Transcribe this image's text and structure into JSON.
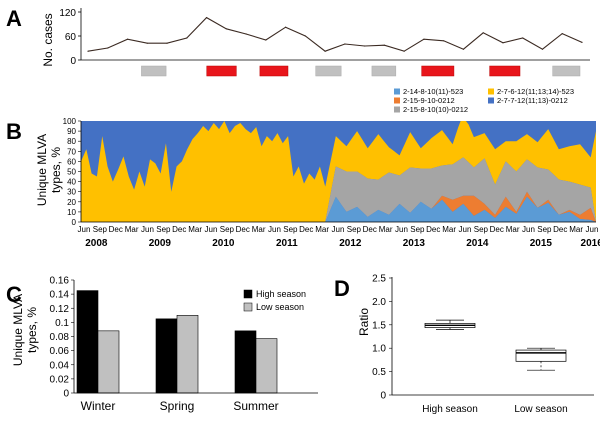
{
  "panels": {
    "a": "A",
    "b": "B",
    "c": "C",
    "d": "D"
  },
  "colors": {
    "line": "#3b2a22",
    "high_season": "#e8151b",
    "low_season": "#c0c0c0",
    "s_2_7_7": "#4471c4",
    "s_2_7_6": "#ffc000",
    "s_2_15_8": "#a5a5a5",
    "s_2_15_9": "#ed7d31",
    "s_2_14_8": "#5b9bd5",
    "bar_high": "#000000",
    "bar_low": "#c0c0c0"
  },
  "chart_data": [
    {
      "id": "A",
      "type": "line",
      "ylabel": "No. cases",
      "yticks": [
        0,
        60,
        120
      ],
      "ylim": [
        0,
        120
      ],
      "xlim": [
        0,
        100
      ],
      "x": [
        0,
        4,
        8,
        12,
        16,
        20,
        24,
        28,
        32,
        36,
        40,
        44,
        48,
        52,
        56,
        60,
        64,
        68,
        72,
        76,
        80,
        84,
        88,
        92,
        96,
        100
      ],
      "values": [
        22,
        30,
        52,
        42,
        42,
        55,
        106,
        78,
        65,
        50,
        82,
        60,
        22,
        40,
        35,
        37,
        22,
        52,
        48,
        27,
        68,
        43,
        55,
        27,
        66,
        44
      ],
      "season_bars": [
        {
          "season": "low",
          "start": 8.8,
          "end": 15.3
        },
        {
          "season": "high",
          "start": 26.0,
          "end": 33.8
        },
        {
          "season": "high",
          "start": 40.0,
          "end": 47.4
        },
        {
          "season": "low",
          "start": 54.7,
          "end": 61.4
        },
        {
          "season": "low",
          "start": 69.5,
          "end": 75.8
        },
        {
          "season": "high",
          "start": 82.6,
          "end": 91.1
        },
        {
          "season": "high",
          "start": 100.5,
          "end": 108.5
        },
        {
          "season": "low",
          "start": 117.1,
          "end": 124.3
        }
      ]
    },
    {
      "id": "B",
      "type": "area",
      "stacked": true,
      "ylabel": "Unique MLVA types, %",
      "ylabel_lines": [
        "Unique MLVA",
        "types, %"
      ],
      "yticks": [
        0,
        10,
        20,
        30,
        40,
        50,
        60,
        70,
        80,
        90,
        100
      ],
      "ylim": [
        0,
        100
      ],
      "xlim": [
        0,
        97
      ],
      "month_ticks": [
        "Jun",
        "Sep",
        "Dec",
        "Mar",
        "Jun",
        "Sep",
        "Dec",
        "Mar",
        "Jun",
        "Sep",
        "Dec",
        "Mar",
        "Jun",
        "Sep",
        "Dec",
        "Mar",
        "Jun",
        "Sep",
        "Dec",
        "Mar",
        "Jun",
        "Sep",
        "Dec",
        "Mar",
        "Jun",
        "Sep",
        "Dec",
        "Mar",
        "Jun",
        "Sep",
        "Dec",
        "Mar",
        "Jun"
      ],
      "years": [
        "2008",
        "2009",
        "2010",
        "2011",
        "2012",
        "2013",
        "2014",
        "2015",
        "2016"
      ],
      "legend": [
        "2-14-8-10(11)-523",
        "2-15-9-10-0212",
        "2-15-8-10(10)-0212",
        "2-7-6-12(11;13;14)-523",
        "2-7-7-12(11;13)-0212"
      ],
      "series": [
        {
          "name": "2-14-8-10(11)-523",
          "color_key": "s_2_14_8",
          "x": [
            0,
            46,
            48,
            50,
            52,
            54,
            56,
            58,
            60,
            62,
            64,
            66,
            68,
            70,
            72,
            74,
            76,
            78,
            80,
            82,
            84,
            86,
            88,
            90,
            92,
            94,
            96,
            97
          ],
          "values": [
            0,
            0,
            25,
            10,
            15,
            5,
            12,
            7,
            18,
            9,
            20,
            13,
            22,
            10,
            18,
            6,
            12,
            4,
            15,
            8,
            25,
            14,
            19,
            7,
            10,
            3,
            2,
            0
          ]
        },
        {
          "name": "2-15-9-10-0212",
          "color_key": "s_2_15_9",
          "x": [
            0,
            66,
            68,
            70,
            72,
            74,
            76,
            78,
            80,
            82,
            84,
            86,
            88,
            90,
            92,
            94,
            96,
            97
          ],
          "values": [
            0,
            0,
            4,
            12,
            8,
            20,
            6,
            3,
            10,
            2,
            5,
            0,
            3,
            0,
            2,
            4,
            12,
            0
          ]
        },
        {
          "name": "2-15-8-10(10)-0212",
          "color_key": "s_2_15_8",
          "x": [
            0,
            46,
            48,
            50,
            52,
            54,
            56,
            58,
            60,
            62,
            64,
            66,
            68,
            70,
            72,
            74,
            76,
            78,
            80,
            82,
            84,
            86,
            88,
            90,
            92,
            94,
            96,
            97
          ],
          "values": [
            0,
            0,
            30,
            40,
            35,
            38,
            30,
            42,
            28,
            45,
            33,
            40,
            30,
            35,
            38,
            28,
            45,
            30,
            35,
            40,
            32,
            40,
            30,
            35,
            28,
            30,
            20,
            0
          ]
        },
        {
          "name": "2-7-6-12(11;13;14)-523",
          "color_key": "s_2_7_6",
          "x": [
            0,
            1,
            2,
            3,
            4,
            5,
            6,
            7,
            8,
            9,
            10,
            11,
            12,
            13,
            14,
            15,
            16,
            17,
            18,
            19,
            20,
            21,
            22,
            23,
            24,
            25,
            26,
            27,
            28,
            29,
            30,
            31,
            32,
            33,
            34,
            35,
            36,
            37,
            38,
            39,
            40,
            41,
            42,
            43,
            44,
            45,
            46,
            48,
            50,
            52,
            54,
            56,
            58,
            60,
            62,
            64,
            66,
            68,
            70,
            72,
            74,
            76,
            78,
            80,
            82,
            84,
            86,
            88,
            90,
            92,
            94,
            96,
            97
          ],
          "values": [
            60,
            72,
            48,
            45,
            85,
            55,
            40,
            52,
            65,
            45,
            32,
            50,
            35,
            62,
            58,
            48,
            78,
            30,
            55,
            60,
            72,
            82,
            88,
            95,
            90,
            98,
            92,
            100,
            88,
            95,
            98,
            92,
            88,
            94,
            75,
            85,
            80,
            88,
            78,
            85,
            45,
            55,
            38,
            48,
            42,
            55,
            35,
            30,
            25,
            40,
            30,
            45,
            25,
            20,
            35,
            20,
            30,
            35,
            20,
            45,
            30,
            25,
            35,
            20,
            30,
            25,
            25,
            40,
            30,
            35,
            40,
            30,
            90
          ]
        },
        {
          "name": "2-7-7-12(11;13)-0212",
          "color_key": "s_2_7_7",
          "fill_to_top": true
        }
      ]
    },
    {
      "id": "C",
      "type": "bar",
      "ylabel": "Unique MLVA types, %",
      "ylabel_lines": [
        "Unique MLVA",
        "types, %"
      ],
      "yticks": [
        "0",
        "0.02",
        "0.04",
        "0.06",
        "0.08",
        "0.1",
        "0.12",
        "0.14",
        "0.16"
      ],
      "ylim": [
        0,
        0.16
      ],
      "categories": [
        "Winter",
        "Spring",
        "Summer"
      ],
      "series": [
        {
          "name": "High season",
          "color_key": "bar_high",
          "values": [
            0.145,
            0.105,
            0.088
          ]
        },
        {
          "name": "Low season",
          "color_key": "bar_low",
          "values": [
            0.088,
            0.11,
            0.077
          ]
        }
      ],
      "legend": [
        "High season",
        "Low season"
      ],
      "legend_position": "top-right"
    },
    {
      "id": "D",
      "type": "boxplot",
      "ylabel": "Ratio",
      "yticks": [
        "0",
        "0.5",
        "1.0",
        "1.5",
        "2.0",
        "2.5"
      ],
      "ylim": [
        0,
        2.5
      ],
      "categories": [
        "High season",
        "Low season"
      ],
      "boxes": [
        {
          "min": 1.4,
          "q1": 1.44,
          "median": 1.49,
          "q3": 1.53,
          "max": 1.6
        },
        {
          "min": 0.53,
          "q1": 0.72,
          "median": 0.9,
          "q3": 0.96,
          "max": 1.0
        }
      ]
    }
  ]
}
